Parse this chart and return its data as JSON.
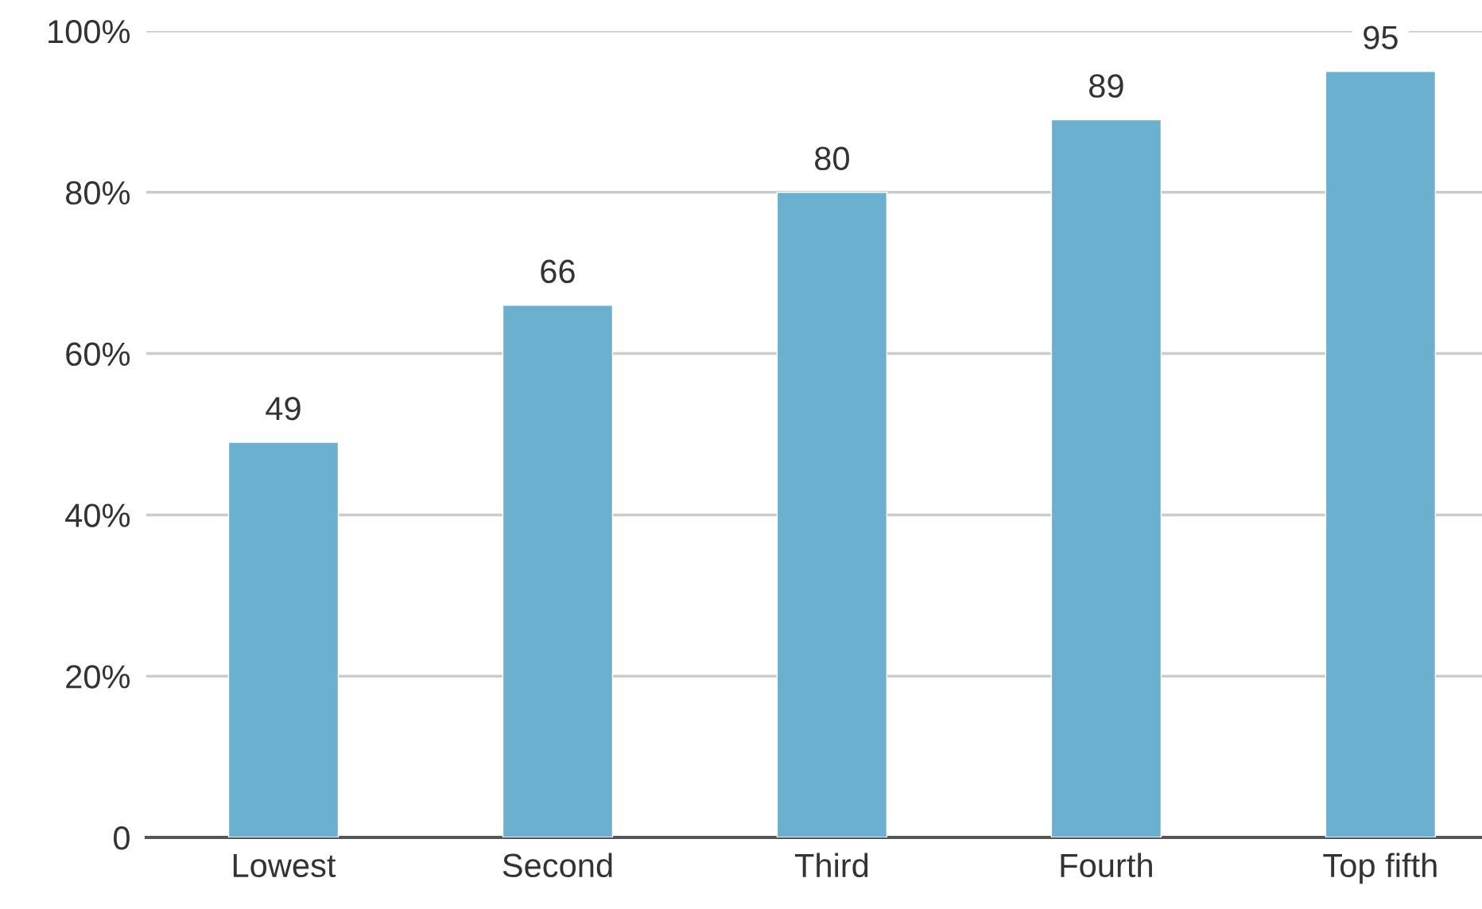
{
  "chart_data": {
    "type": "bar",
    "categories": [
      "Lowest",
      "Second",
      "Third",
      "Fourth",
      "Top fifth"
    ],
    "values": [
      49,
      66,
      80,
      89,
      95
    ],
    "color": "#6cb0d0",
    "ylim": [
      0,
      100
    ],
    "yticks": [
      0,
      {
        "value": 20,
        "label": "20%"
      },
      {
        "value": 40,
        "label": "40%"
      },
      {
        "value": 60,
        "label": "60%"
      },
      {
        "value": 80,
        "label": "80%"
      },
      {
        "value": 100,
        "label": "100%"
      }
    ],
    "grid": "y",
    "data_labels": true
  }
}
